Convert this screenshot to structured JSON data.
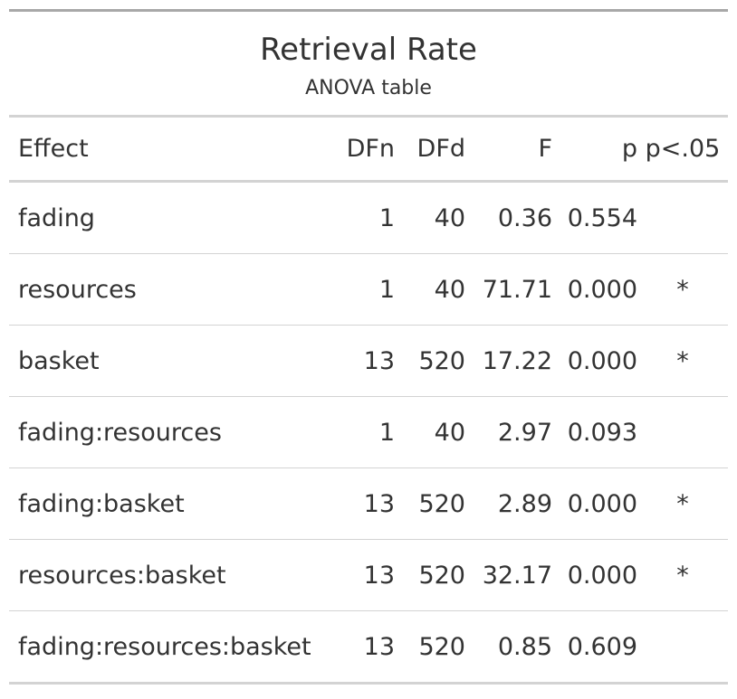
{
  "title": "Retrieval Rate",
  "subtitle": "ANOVA table",
  "columns": {
    "effect": "Effect",
    "dfn": "DFn",
    "dfd": "DFd",
    "f": "F",
    "p": "p",
    "sig": "p<.05"
  },
  "rows": [
    {
      "effect": "fading",
      "dfn": "1",
      "dfd": "40",
      "f": "0.36",
      "p": "0.554",
      "sig": ""
    },
    {
      "effect": "resources",
      "dfn": "1",
      "dfd": "40",
      "f": "71.71",
      "p": "0.000",
      "sig": "*"
    },
    {
      "effect": "basket",
      "dfn": "13",
      "dfd": "520",
      "f": "17.22",
      "p": "0.000",
      "sig": "*"
    },
    {
      "effect": "fading:resources",
      "dfn": "1",
      "dfd": "40",
      "f": "2.97",
      "p": "0.093",
      "sig": ""
    },
    {
      "effect": "fading:basket",
      "dfn": "13",
      "dfd": "520",
      "f": "2.89",
      "p": "0.000",
      "sig": "*"
    },
    {
      "effect": "resources:basket",
      "dfn": "13",
      "dfd": "520",
      "f": "32.17",
      "p": "0.000",
      "sig": "*"
    },
    {
      "effect": "fading:resources:basket",
      "dfn": "13",
      "dfd": "520",
      "f": "0.85",
      "p": "0.609",
      "sig": ""
    }
  ]
}
